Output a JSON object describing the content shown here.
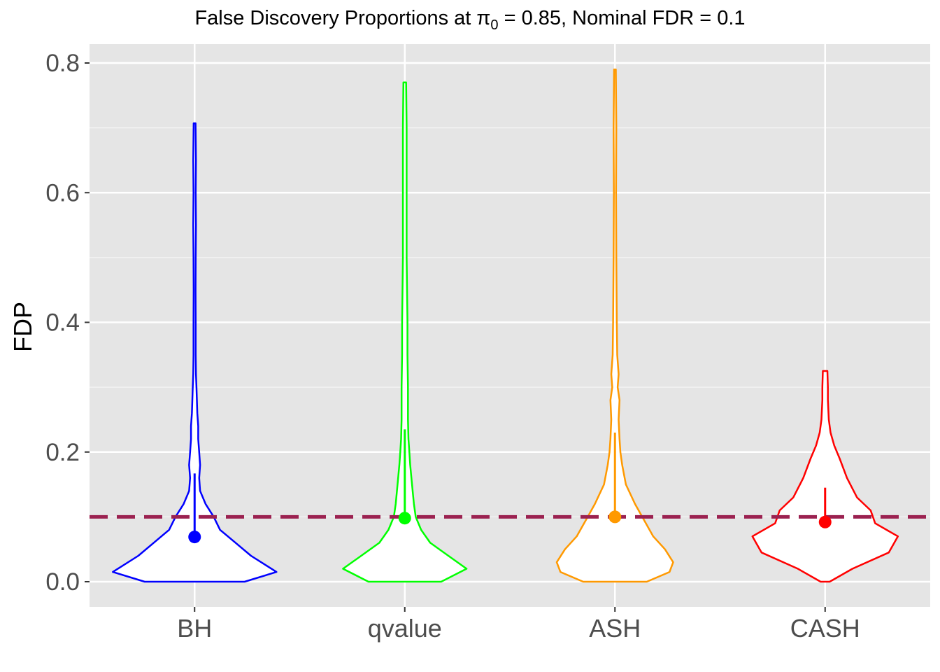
{
  "chart_data": {
    "type": "violin",
    "title_parts": {
      "prefix": "False Discovery Proportions at ",
      "symbol": "π",
      "subscript": "0",
      "suffix": " = 0.85, Nominal FDR = 0.1"
    },
    "xlabel": "",
    "ylabel": "FDP",
    "ylim": [
      -0.04,
      0.83
    ],
    "y_ticks": [
      "0.0",
      "0.2",
      "0.4",
      "0.6",
      "0.8"
    ],
    "y_tick_values": [
      0.0,
      0.2,
      0.4,
      0.6,
      0.8
    ],
    "categories": [
      "BH",
      "qvalue",
      "ASH",
      "CASH"
    ],
    "reference_line": {
      "y": 0.1,
      "style": "dashed",
      "color": "#9b2150"
    },
    "panel_background": "#e5e5e5",
    "grid": true,
    "series": [
      {
        "name": "BH",
        "color": "#0000ff",
        "median": 0.069,
        "whisker": [
          0.069,
          0.167
        ],
        "max": 0.707,
        "density": [
          [
            0.0,
            0.55
          ],
          [
            0.015,
            0.9
          ],
          [
            0.04,
            0.62
          ],
          [
            0.06,
            0.45
          ],
          [
            0.08,
            0.28
          ],
          [
            0.1,
            0.21
          ],
          [
            0.12,
            0.12
          ],
          [
            0.14,
            0.06
          ],
          [
            0.16,
            0.05
          ],
          [
            0.18,
            0.06
          ],
          [
            0.2,
            0.05
          ],
          [
            0.22,
            0.04
          ],
          [
            0.24,
            0.04
          ],
          [
            0.26,
            0.03
          ],
          [
            0.28,
            0.025
          ],
          [
            0.3,
            0.02
          ],
          [
            0.32,
            0.015
          ],
          [
            0.35,
            0.012
          ],
          [
            0.4,
            0.012
          ],
          [
            0.45,
            0.01
          ],
          [
            0.5,
            0.012
          ],
          [
            0.55,
            0.015
          ],
          [
            0.6,
            0.012
          ],
          [
            0.65,
            0.015
          ],
          [
            0.707,
            0.01
          ]
        ]
      },
      {
        "name": "qvalue",
        "color": "#00ff00",
        "median": 0.098,
        "whisker": [
          0.098,
          0.235
        ],
        "max": 0.77,
        "density": [
          [
            0.0,
            0.4
          ],
          [
            0.02,
            0.68
          ],
          [
            0.04,
            0.48
          ],
          [
            0.06,
            0.28
          ],
          [
            0.08,
            0.18
          ],
          [
            0.1,
            0.12
          ],
          [
            0.12,
            0.1
          ],
          [
            0.15,
            0.08
          ],
          [
            0.18,
            0.06
          ],
          [
            0.2,
            0.05
          ],
          [
            0.22,
            0.04
          ],
          [
            0.25,
            0.035
          ],
          [
            0.3,
            0.035
          ],
          [
            0.35,
            0.03
          ],
          [
            0.4,
            0.03
          ],
          [
            0.5,
            0.02
          ],
          [
            0.6,
            0.02
          ],
          [
            0.65,
            0.02
          ],
          [
            0.7,
            0.02
          ],
          [
            0.77,
            0.015
          ]
        ]
      },
      {
        "name": "ASH",
        "color": "#ff9900",
        "median": 0.1,
        "whisker": [
          0.1,
          0.23
        ],
        "max": 0.79,
        "density": [
          [
            0.0,
            0.35
          ],
          [
            0.015,
            0.6
          ],
          [
            0.03,
            0.64
          ],
          [
            0.05,
            0.55
          ],
          [
            0.07,
            0.42
          ],
          [
            0.1,
            0.3
          ],
          [
            0.12,
            0.22
          ],
          [
            0.15,
            0.12
          ],
          [
            0.18,
            0.08
          ],
          [
            0.2,
            0.06
          ],
          [
            0.22,
            0.05
          ],
          [
            0.25,
            0.04
          ],
          [
            0.28,
            0.05
          ],
          [
            0.3,
            0.03
          ],
          [
            0.32,
            0.04
          ],
          [
            0.35,
            0.025
          ],
          [
            0.4,
            0.02
          ],
          [
            0.5,
            0.015
          ],
          [
            0.6,
            0.012
          ],
          [
            0.7,
            0.015
          ],
          [
            0.79,
            0.01
          ]
        ]
      },
      {
        "name": "CASH",
        "color": "#ff0000",
        "median": 0.092,
        "whisker": [
          0.092,
          0.145
        ],
        "max": 0.325,
        "density": [
          [
            0.0,
            0.05
          ],
          [
            0.02,
            0.3
          ],
          [
            0.045,
            0.7
          ],
          [
            0.07,
            0.8
          ],
          [
            0.09,
            0.55
          ],
          [
            0.11,
            0.5
          ],
          [
            0.13,
            0.35
          ],
          [
            0.16,
            0.24
          ],
          [
            0.19,
            0.16
          ],
          [
            0.21,
            0.1
          ],
          [
            0.23,
            0.06
          ],
          [
            0.25,
            0.04
          ],
          [
            0.28,
            0.03
          ],
          [
            0.3,
            0.03
          ],
          [
            0.325,
            0.025
          ]
        ]
      }
    ]
  }
}
